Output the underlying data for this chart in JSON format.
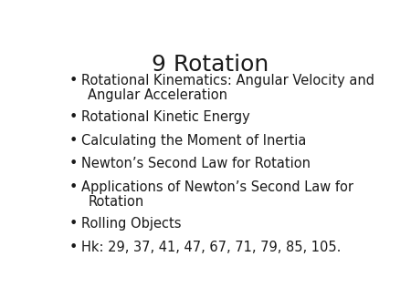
{
  "title": "9 Rotation",
  "title_fontsize": 18,
  "background_color": "#ffffff",
  "text_color": "#1a1a1a",
  "bullet_items": [
    [
      "Rotational Kinematics: Angular Velocity and",
      "Angular Acceleration"
    ],
    [
      "Rotational Kinetic Energy"
    ],
    [
      "Calculating the Moment of Inertia"
    ],
    [
      "Newton’s Second Law for Rotation"
    ],
    [
      "Applications of Newton’s Second Law for",
      "Rotation"
    ],
    [
      "Rolling Objects"
    ],
    [
      "Hk: 29, 37, 41, 47, 67, 71, 79, 85, 105."
    ]
  ],
  "bullet_fontsize": 10.5,
  "bullet_char": "•",
  "font_family": "DejaVu Sans"
}
